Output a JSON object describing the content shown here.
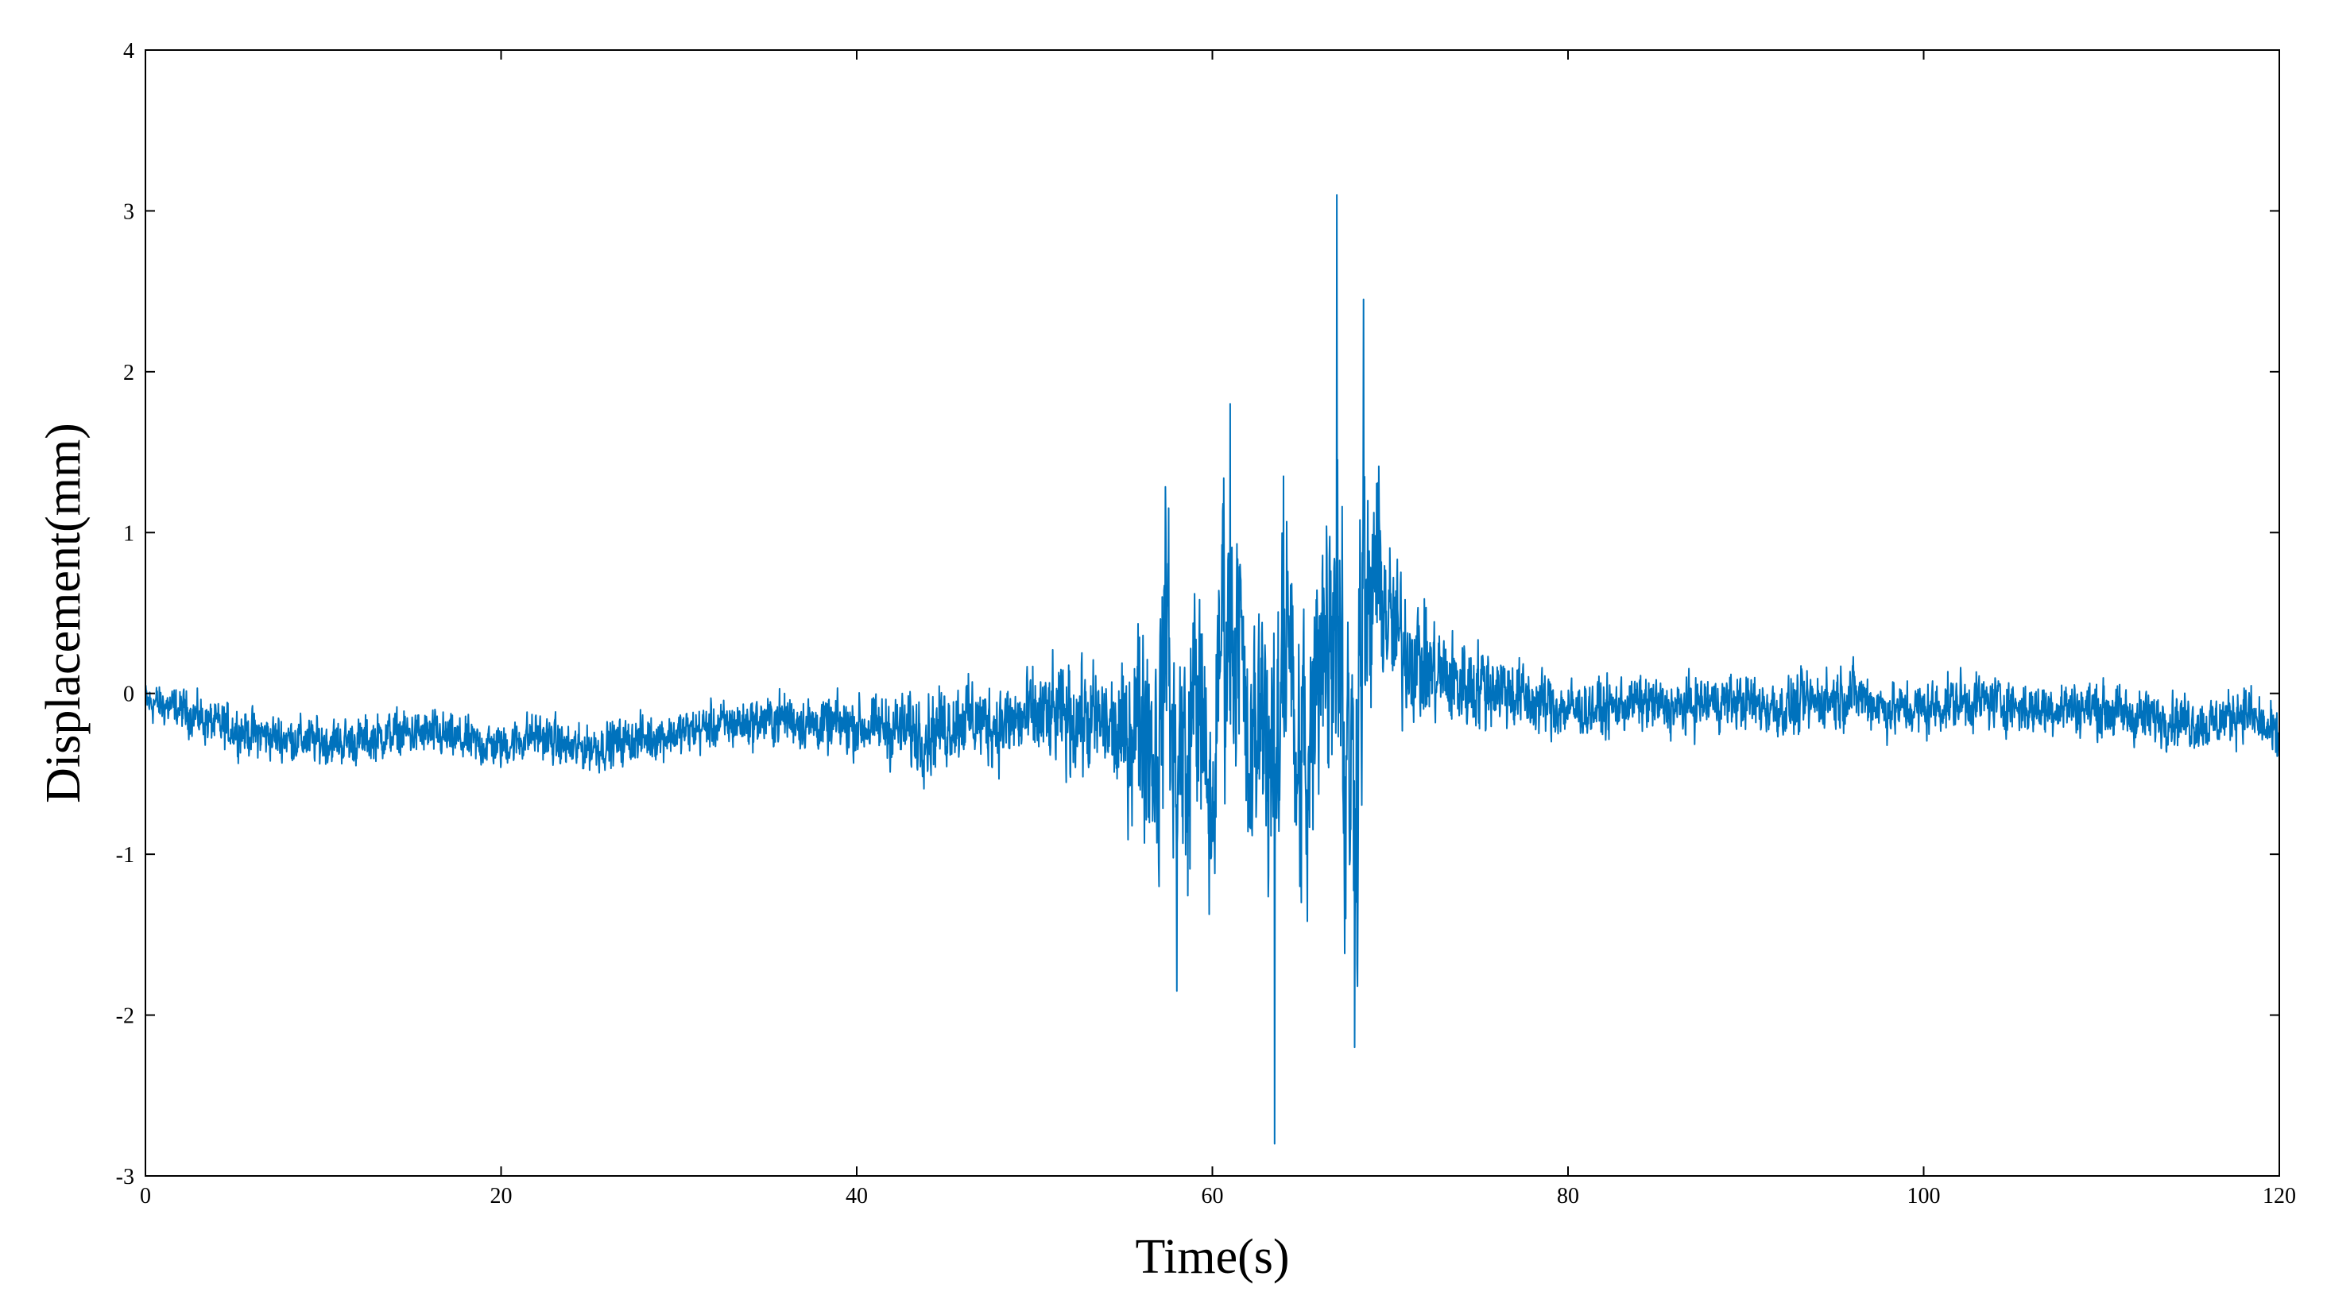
{
  "chart_data": {
    "type": "line",
    "title": "",
    "xlabel": "Time(s)",
    "ylabel": "Displacement(mm)",
    "xlim": [
      0,
      120
    ],
    "ylim": [
      -3,
      4
    ],
    "xticks": [
      0,
      20,
      40,
      60,
      80,
      100,
      120
    ],
    "yticks": [
      -3,
      -2,
      -1,
      0,
      1,
      2,
      3,
      4
    ],
    "grid": false,
    "legend": "none",
    "line_color": "#0072BD",
    "series": [
      {
        "name": "",
        "x": [
          0,
          2,
          4,
          6,
          8,
          10,
          12,
          14,
          16,
          18,
          20,
          22,
          24,
          26,
          28,
          30,
          32,
          34,
          36,
          38,
          40,
          42,
          44,
          46,
          48,
          50,
          52,
          54,
          55,
          56,
          57,
          57.5,
          58,
          59,
          60,
          61,
          62,
          63,
          63.5,
          64,
          65,
          66,
          67,
          67.5,
          68,
          68.5,
          69,
          70,
          72,
          74,
          76,
          78,
          80,
          82,
          84,
          86,
          88,
          90,
          92,
          94,
          96,
          98,
          100,
          102,
          104,
          106,
          108,
          110,
          112,
          114,
          116,
          118,
          120
        ],
        "values": [
          -0.05,
          -0.1,
          -0.2,
          -0.25,
          -0.28,
          -0.3,
          -0.3,
          -0.25,
          -0.25,
          -0.3,
          -0.33,
          -0.25,
          -0.35,
          -0.32,
          -0.28,
          -0.25,
          -0.2,
          -0.18,
          -0.15,
          -0.2,
          -0.2,
          -0.22,
          -0.25,
          -0.15,
          -0.2,
          -0.15,
          -0.15,
          -0.2,
          -0.3,
          -0.1,
          -0.4,
          0.7,
          -1.85,
          0.2,
          -0.9,
          1.8,
          -0.6,
          0.1,
          -2.8,
          1.35,
          -1.3,
          0.3,
          3.1,
          -1.4,
          -2.2,
          2.45,
          0.9,
          0.4,
          0.15,
          0.05,
          0.05,
          -0.05,
          -0.1,
          -0.1,
          -0.05,
          -0.1,
          -0.05,
          -0.05,
          -0.1,
          -0.05,
          0.0,
          -0.1,
          -0.1,
          -0.05,
          -0.05,
          -0.1,
          -0.08,
          -0.1,
          -0.15,
          -0.15,
          -0.2,
          -0.1,
          -0.3
        ],
        "amplitude": [
          0.15,
          0.15,
          0.17,
          0.17,
          0.17,
          0.17,
          0.17,
          0.17,
          0.17,
          0.17,
          0.17,
          0.17,
          0.17,
          0.17,
          0.17,
          0.17,
          0.17,
          0.18,
          0.2,
          0.2,
          0.22,
          0.25,
          0.3,
          0.3,
          0.3,
          0.35,
          0.4,
          0.4,
          0.5,
          0.8,
          0.9,
          0.9,
          0.9,
          0.9,
          0.9,
          0.9,
          0.9,
          0.9,
          0.9,
          0.9,
          1.0,
          1.1,
          1.3,
          1.3,
          1.2,
          1.2,
          0.9,
          0.6,
          0.4,
          0.35,
          0.3,
          0.25,
          0.22,
          0.2,
          0.2,
          0.2,
          0.2,
          0.2,
          0.22,
          0.22,
          0.22,
          0.2,
          0.2,
          0.2,
          0.2,
          0.2,
          0.2,
          0.2,
          0.2,
          0.2,
          0.2,
          0.2,
          0.2
        ]
      }
    ]
  }
}
